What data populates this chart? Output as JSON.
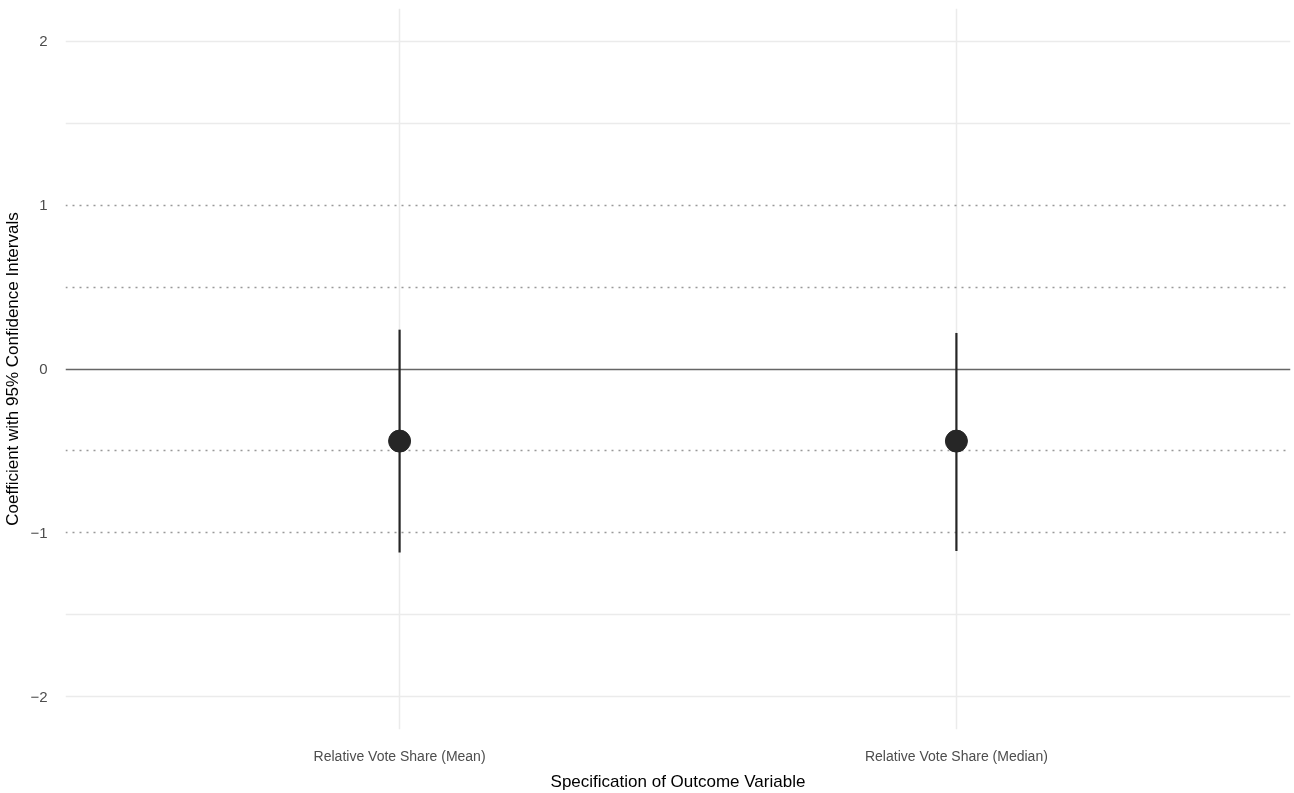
{
  "chart_data": {
    "type": "scatter",
    "xlabel": "Specification of Outcome Variable",
    "ylabel": "Coefficient with 95% Confidence Intervals",
    "categories": [
      "Relative Vote Share (Mean)",
      "Relative Vote Share (Median)"
    ],
    "series": [
      {
        "color": "#262626",
        "values": [
          -0.44,
          -0.44
        ],
        "errors": [
          [
            -1.12,
            0.24
          ],
          [
            -1.11,
            0.22
          ]
        ]
      }
    ],
    "ylim": [
      -2.2,
      2.2
    ],
    "yticks": [
      {
        "value": -2,
        "label": "−2"
      },
      {
        "value": -1,
        "label": "−1"
      },
      0,
      1,
      2
    ],
    "ref_lines": [
      {
        "axis": "y",
        "value": -1.5,
        "color": "#ebebeb",
        "line_style": "solid"
      },
      {
        "axis": "y",
        "value": -1,
        "color": "#999999",
        "line_style": "dotted"
      },
      {
        "axis": "y",
        "value": -0.5,
        "color": "#999999",
        "line_style": "dotted"
      },
      {
        "axis": "y",
        "value": 0,
        "color": "#666666",
        "line_style": "solid"
      },
      {
        "axis": "y",
        "value": 0.5,
        "color": "#999999",
        "line_style": "dotted"
      },
      {
        "axis": "y",
        "value": 1,
        "color": "#999999",
        "line_style": "dotted"
      },
      {
        "axis": "y",
        "value": 1.5,
        "color": "#ebebeb",
        "line_style": "solid"
      }
    ],
    "grid": true,
    "marker": "circle"
  }
}
